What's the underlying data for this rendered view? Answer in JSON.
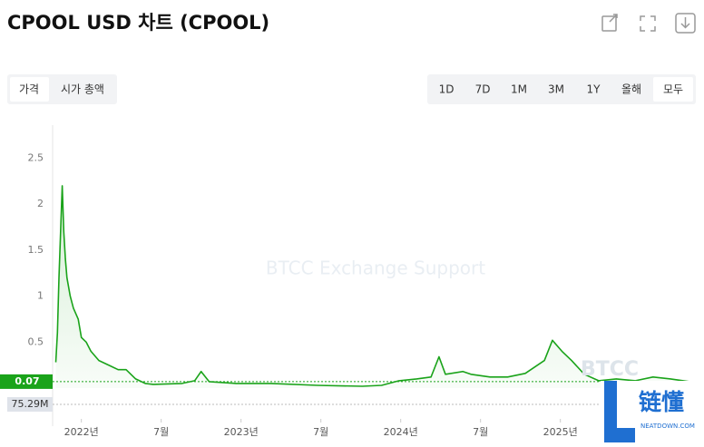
{
  "header": {
    "title": "CPOOL USD 차트 (CPOOL)"
  },
  "tabs": [
    "가격",
    "시가 총액"
  ],
  "ranges": [
    "1D",
    "7D",
    "1M",
    "3M",
    "1Y",
    "올해",
    "모두"
  ],
  "active_range": "모두",
  "watermark": "BTCC Exchange Support",
  "logo": {
    "brand": "BTCC",
    "name": "链懂",
    "site": "NEATDOWN.COM"
  },
  "chart_data": {
    "type": "line",
    "series": [
      {
        "name": "CPOOL",
        "color": "#1aa31a",
        "x": [
          2021.84,
          2021.85,
          2021.86,
          2021.88,
          2021.89,
          2021.9,
          2021.91,
          2021.93,
          2021.95,
          2021.98,
          2022.0,
          2022.03,
          2022.06,
          2022.11,
          2022.17,
          2022.23,
          2022.28,
          2022.34,
          2022.4,
          2022.45,
          2022.63,
          2022.71,
          2022.75,
          2022.8,
          2022.97,
          2023.19,
          2023.48,
          2023.76,
          2023.88,
          2023.99,
          2024.1,
          2024.19,
          2024.24,
          2024.28,
          2024.39,
          2024.44,
          2024.56,
          2024.67,
          2024.78,
          2024.9,
          2024.95,
          2025.01,
          2025.07,
          2025.15,
          2025.24,
          2025.35,
          2025.47,
          2025.58,
          2025.69,
          2025.81
        ],
        "values": [
          0.28,
          0.6,
          1.2,
          2.2,
          1.7,
          1.4,
          1.2,
          1.0,
          0.87,
          0.75,
          0.55,
          0.5,
          0.4,
          0.3,
          0.25,
          0.2,
          0.2,
          0.1,
          0.05,
          0.04,
          0.05,
          0.08,
          0.18,
          0.07,
          0.05,
          0.05,
          0.03,
          0.02,
          0.03,
          0.08,
          0.1,
          0.12,
          0.34,
          0.15,
          0.18,
          0.15,
          0.12,
          0.12,
          0.16,
          0.3,
          0.52,
          0.4,
          0.3,
          0.15,
          0.08,
          0.1,
          0.08,
          0.12,
          0.1,
          0.07
        ]
      }
    ],
    "xlim": [
      2021.82,
      2025.82
    ],
    "xticks": [
      {
        "value": 2022,
        "label": "2022년"
      },
      {
        "value": 2022.5,
        "label": "7월"
      },
      {
        "value": 2023,
        "label": "2023년"
      },
      {
        "value": 2023.5,
        "label": "7월"
      },
      {
        "value": 2024,
        "label": "2024년"
      },
      {
        "value": 2024.5,
        "label": "7월"
      },
      {
        "value": 2025,
        "label": "2025년"
      }
    ],
    "ylim": [
      0,
      2.8
    ],
    "yticks": [
      0.5,
      1,
      1.5,
      2,
      2.5
    ],
    "last_price": 0.07,
    "volume_label": "75.29M"
  }
}
